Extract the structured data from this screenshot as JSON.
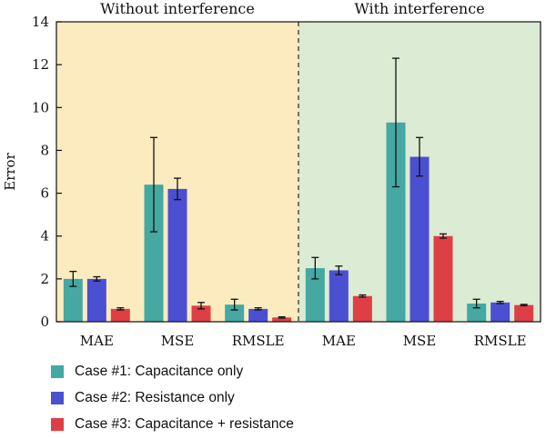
{
  "chart_data": {
    "type": "bar",
    "ylabel": "Error",
    "ylim": [
      0,
      14
    ],
    "yticks": [
      0,
      2,
      4,
      6,
      8,
      10,
      12,
      14
    ],
    "grid": false,
    "legend_placement": "bottom-left",
    "panels": [
      {
        "title": "Without interference",
        "background": "#fdebc0",
        "categories": [
          "MAE",
          "MSE",
          "RMSLE"
        ]
      },
      {
        "title": "With interference",
        "background": "#dcebd3",
        "categories": [
          "MAE",
          "MSE",
          "RMSLE"
        ]
      }
    ],
    "series": [
      {
        "name": "Case #1: Capacitance only",
        "color": "#45a8a2",
        "values": [
          2.0,
          6.4,
          0.8,
          2.5,
          9.3,
          0.85
        ],
        "errors": [
          0.35,
          2.2,
          0.25,
          0.5,
          3.0,
          0.2
        ]
      },
      {
        "name": "Case #2: Resistance only",
        "color": "#4b4fd1",
        "values": [
          2.0,
          6.2,
          0.6,
          2.4,
          7.7,
          0.9
        ],
        "errors": [
          0.1,
          0.5,
          0.05,
          0.2,
          0.9,
          0.05
        ]
      },
      {
        "name": "Case #3: Capacitance + resistance",
        "color": "#dd3f45",
        "values": [
          0.6,
          0.75,
          0.2,
          1.2,
          4.0,
          0.78
        ],
        "errors": [
          0.05,
          0.15,
          0.03,
          0.05,
          0.1,
          0.03
        ]
      }
    ]
  }
}
